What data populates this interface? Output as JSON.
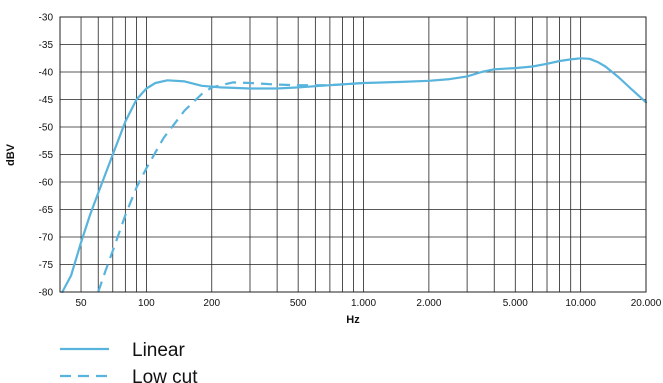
{
  "chart_data": {
    "type": "line",
    "title": "",
    "xlabel": "Hz",
    "ylabel": "dBV",
    "x_scale": "log",
    "xlim": [
      40,
      20000
    ],
    "ylim": [
      -80,
      -30
    ],
    "grid": true,
    "legend_position": "bottom-left",
    "x_ticks": [
      {
        "value": 50,
        "label": "50"
      },
      {
        "value": 100,
        "label": "100"
      },
      {
        "value": 200,
        "label": "200"
      },
      {
        "value": 500,
        "label": "500"
      },
      {
        "value": 1000,
        "label": "1.000"
      },
      {
        "value": 2000,
        "label": "2.000"
      },
      {
        "value": 5000,
        "label": "5.000"
      },
      {
        "value": 10000,
        "label": "10.000"
      },
      {
        "value": 20000,
        "label": "20.000"
      }
    ],
    "y_ticks": [
      {
        "value": -30,
        "label": "-30"
      },
      {
        "value": -35,
        "label": "-35"
      },
      {
        "value": -40,
        "label": "-40"
      },
      {
        "value": -45,
        "label": "-45"
      },
      {
        "value": -50,
        "label": "-50"
      },
      {
        "value": -55,
        "label": "-55"
      },
      {
        "value": -60,
        "label": "-60"
      },
      {
        "value": -65,
        "label": "-65"
      },
      {
        "value": -70,
        "label": "-70"
      },
      {
        "value": -75,
        "label": "-75"
      },
      {
        "value": -80,
        "label": "-80"
      }
    ],
    "series": [
      {
        "name": "Linear",
        "color": "#58b4dc",
        "dash": "solid",
        "points": [
          [
            41,
            -80
          ],
          [
            45,
            -77
          ],
          [
            50,
            -71
          ],
          [
            55,
            -66
          ],
          [
            60,
            -62
          ],
          [
            70,
            -55
          ],
          [
            80,
            -49
          ],
          [
            90,
            -45
          ],
          [
            100,
            -43
          ],
          [
            110,
            -42
          ],
          [
            125,
            -41.5
          ],
          [
            150,
            -41.7
          ],
          [
            180,
            -42.5
          ],
          [
            220,
            -42.8
          ],
          [
            300,
            -43
          ],
          [
            400,
            -43
          ],
          [
            500,
            -42.8
          ],
          [
            700,
            -42.4
          ],
          [
            1000,
            -42
          ],
          [
            1500,
            -41.8
          ],
          [
            2000,
            -41.6
          ],
          [
            2500,
            -41.3
          ],
          [
            3000,
            -40.8
          ],
          [
            3500,
            -40
          ],
          [
            4000,
            -39.5
          ],
          [
            5000,
            -39.3
          ],
          [
            6000,
            -39
          ],
          [
            7000,
            -38.5
          ],
          [
            8000,
            -38
          ],
          [
            9000,
            -37.7
          ],
          [
            10000,
            -37.5
          ],
          [
            11000,
            -37.6
          ],
          [
            12000,
            -38.2
          ],
          [
            13000,
            -39
          ],
          [
            15000,
            -41
          ],
          [
            17000,
            -43
          ],
          [
            20000,
            -45.5
          ]
        ]
      },
      {
        "name": "Low cut",
        "color": "#58b4dc",
        "dash": "dashed",
        "points": [
          [
            60,
            -80
          ],
          [
            65,
            -76
          ],
          [
            70,
            -72.5
          ],
          [
            80,
            -66
          ],
          [
            90,
            -61
          ],
          [
            100,
            -57.5
          ],
          [
            120,
            -52
          ],
          [
            150,
            -47
          ],
          [
            180,
            -44
          ],
          [
            200,
            -42.8
          ],
          [
            250,
            -41.9
          ],
          [
            300,
            -42
          ],
          [
            400,
            -42.3
          ],
          [
            500,
            -42.4
          ],
          [
            700,
            -42.4
          ],
          [
            1000,
            -42
          ]
        ]
      }
    ]
  }
}
